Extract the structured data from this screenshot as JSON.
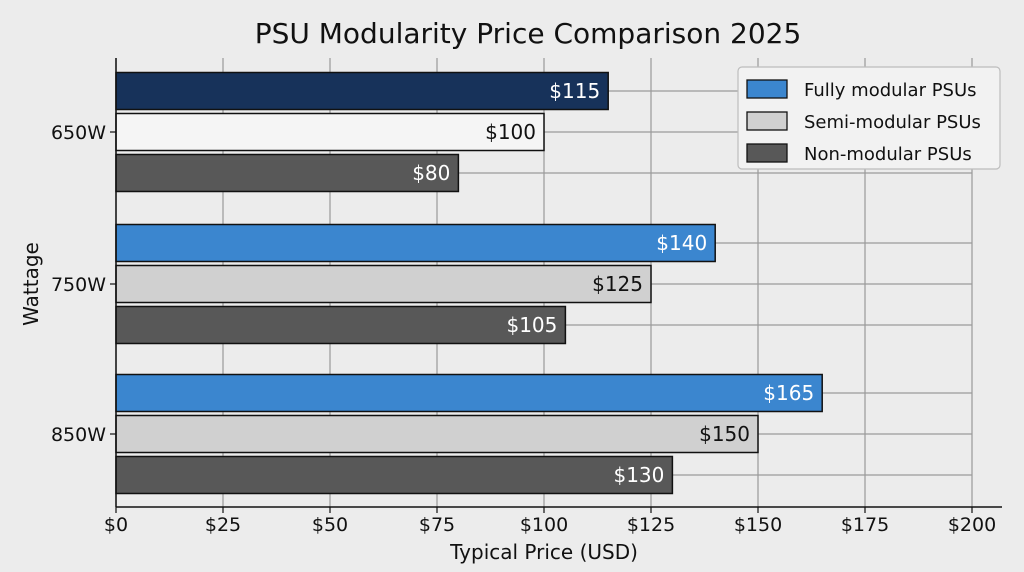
{
  "chart_data": {
    "type": "bar",
    "orientation": "horizontal",
    "title": "PSU Modularity Price Comparison 2025",
    "xlabel": "Typical Price (USD)",
    "ylabel": "Wattage",
    "categories": [
      "650W",
      "750W",
      "850W"
    ],
    "xlim": [
      0,
      200
    ],
    "xticks": [
      0,
      25,
      50,
      75,
      100,
      125,
      150,
      175,
      200
    ],
    "xtick_labels": [
      "$0",
      "$25",
      "$50",
      "$75",
      "$100",
      "$125",
      "$150",
      "$175",
      "$200"
    ],
    "grid": true,
    "legend_position": "top-right",
    "series": [
      {
        "name": "Fully modular PSUs",
        "values": [
          115,
          140,
          165
        ],
        "labels": [
          "$115",
          "$140",
          "$165"
        ],
        "color": "#3b86cf",
        "colors": [
          "#17325a",
          "#3b86cf",
          "#3b86cf"
        ],
        "label_color": "#ffffff"
      },
      {
        "name": "Semi-modular PSUs",
        "values": [
          100,
          125,
          150
        ],
        "labels": [
          "$100",
          "$125",
          "$150"
        ],
        "color": "#d0d0d0",
        "colors": [
          "#f5f5f5",
          "#d0d0d0",
          "#d0d0d0"
        ],
        "label_color": "#111111"
      },
      {
        "name": "Non-modular PSUs",
        "values": [
          80,
          105,
          130
        ],
        "labels": [
          "$80",
          "$105",
          "$130"
        ],
        "color": "#585858",
        "colors": [
          "#585858",
          "#585858",
          "#585858"
        ],
        "label_color": "#ffffff"
      }
    ]
  }
}
